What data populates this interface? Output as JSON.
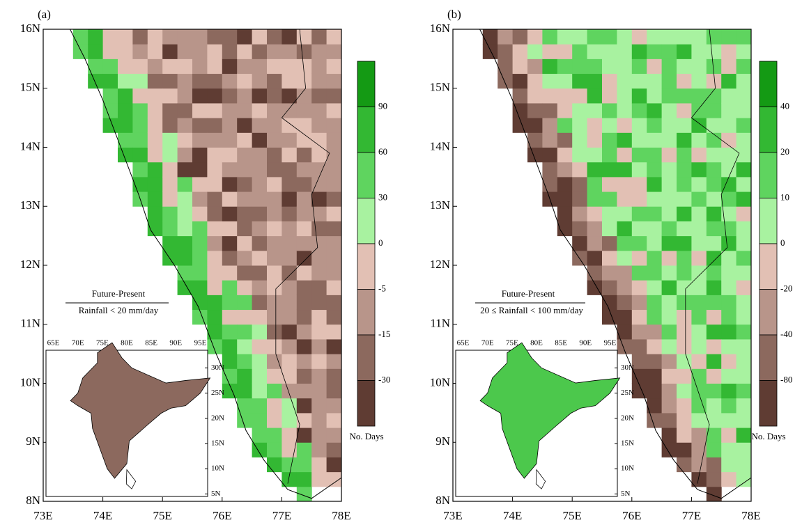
{
  "panels": [
    {
      "label": "(a)",
      "x_ticks": [
        "73E",
        "74E",
        "75E",
        "76E",
        "77E",
        "78E"
      ],
      "y_ticks": [
        "8N",
        "9N",
        "10N",
        "11N",
        "12N",
        "13N",
        "14N",
        "15N",
        "16N"
      ],
      "legend_title": "Future-Present",
      "legend_subtitle": "Rainfall < 20 mm/day",
      "colorbar": {
        "ticks": [
          "90",
          "60",
          "30",
          "0",
          "-5",
          "-15",
          "-30"
        ],
        "label": "No. Days",
        "colors": [
          "#149a14",
          "#33b833",
          "#5fd45f",
          "#a8f2a0",
          "#e2c0b4",
          "#b8958a",
          "#8c695e",
          "#5f3c33"
        ]
      },
      "inset": {
        "x_ticks": [
          "65E",
          "70E",
          "75E",
          "80E",
          "85E",
          "90E",
          "95E"
        ],
        "y_ticks": [
          "30N",
          "25N",
          "20N",
          "15N",
          "10N",
          "5N"
        ]
      }
    },
    {
      "label": "(b)",
      "x_ticks": [
        "73E",
        "74E",
        "75E",
        "76E",
        "77E",
        "78E"
      ],
      "y_ticks": [
        "8N",
        "9N",
        "10N",
        "11N",
        "12N",
        "13N",
        "14N",
        "15N",
        "16N"
      ],
      "legend_title": "Future-Present",
      "legend_subtitle": "20 ≤ Rainfall < 100 mm/day",
      "colorbar": {
        "ticks": [
          "40",
          "20",
          "10",
          "0",
          "-20",
          "-40",
          "-80"
        ],
        "label": "No. Days",
        "colors": [
          "#149a14",
          "#33b833",
          "#5fd45f",
          "#a8f2a0",
          "#e2c0b4",
          "#b8958a",
          "#8c695e",
          "#5f3c33"
        ]
      },
      "inset": {
        "x_ticks": [
          "65E",
          "70E",
          "75E",
          "80E",
          "85E",
          "90E",
          "95E"
        ],
        "y_ticks": [
          "30N",
          "25N",
          "20N",
          "15N",
          "10N",
          "5N"
        ]
      }
    }
  ]
}
